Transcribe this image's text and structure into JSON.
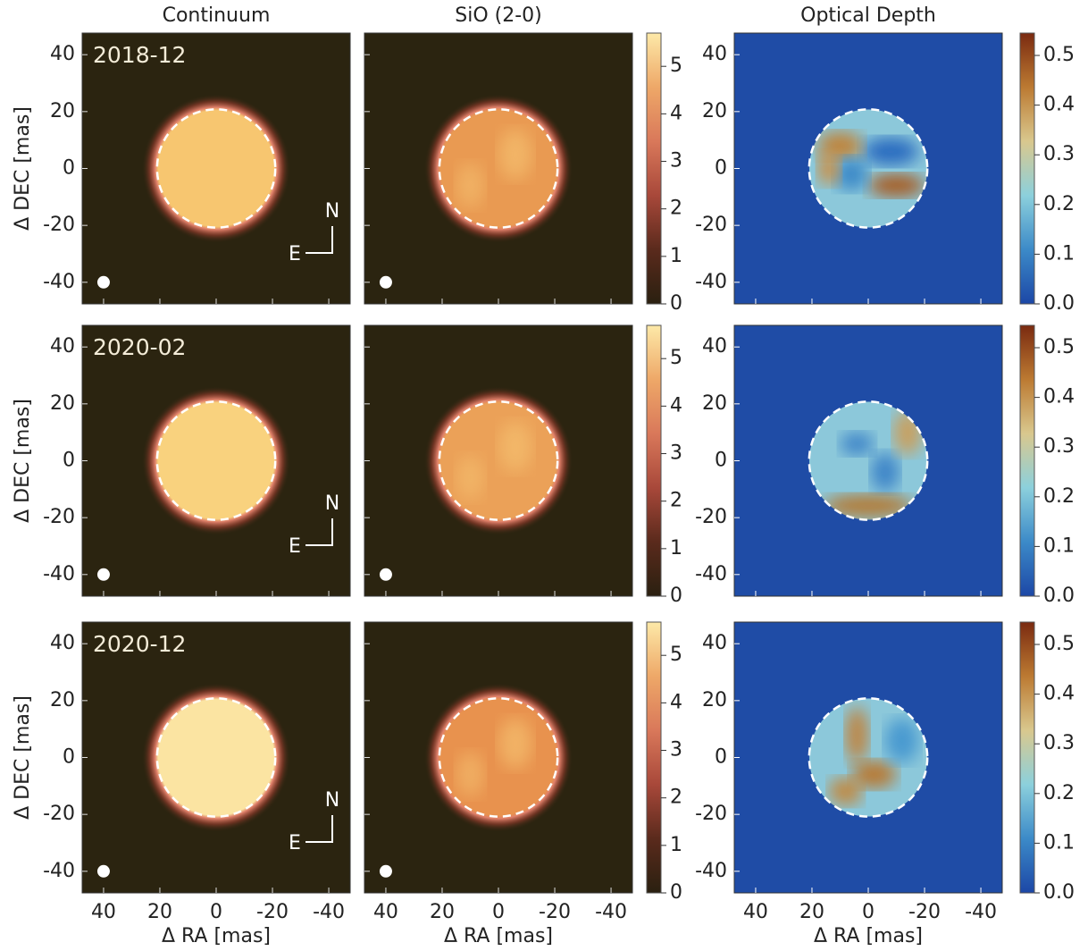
{
  "figure": {
    "column_titles": [
      "Continuum",
      "SiO (2-0)",
      "Optical Depth"
    ],
    "epochs": [
      "2018-12",
      "2020-02",
      "2020-12"
    ],
    "xlabel": "Δ RA [mas]",
    "ylabel": "Δ DEC [mas]",
    "xlim": [
      47.6,
      -47.6
    ],
    "ylim": [
      -47.6,
      47.6
    ],
    "xticks": [
      40,
      20,
      0,
      -20,
      -40
    ],
    "yticks": [
      40,
      20,
      0,
      -20,
      -40
    ],
    "disk_radius": 21,
    "compass": {
      "north": "N",
      "east": "E"
    },
    "colorbars": [
      {
        "lim": [
          0,
          5.7
        ],
        "ticks": [
          0,
          1,
          2,
          3,
          4,
          5
        ],
        "colors": [
          "#2a2010",
          "#5a2a1c",
          "#a8483a",
          "#d9785a",
          "#eea868",
          "#fde9a8"
        ]
      },
      {
        "lim": [
          0,
          0.545
        ],
        "ticks": [
          {
            "value": 0,
            "label": "0.0"
          },
          {
            "value": 0.1,
            "label": "0.1"
          },
          {
            "value": 0.2,
            "label": "0.2"
          },
          {
            "value": 0.3,
            "label": "0.3"
          },
          {
            "value": 0.4,
            "label": "0.4"
          },
          {
            "value": 0.5,
            "label": "0.5"
          }
        ],
        "colors": [
          "#1c47a6",
          "#3c8ac8",
          "#8cd0dc",
          "#d9c88e",
          "#bc7a32",
          "#7a2a10"
        ]
      }
    ]
  }
}
